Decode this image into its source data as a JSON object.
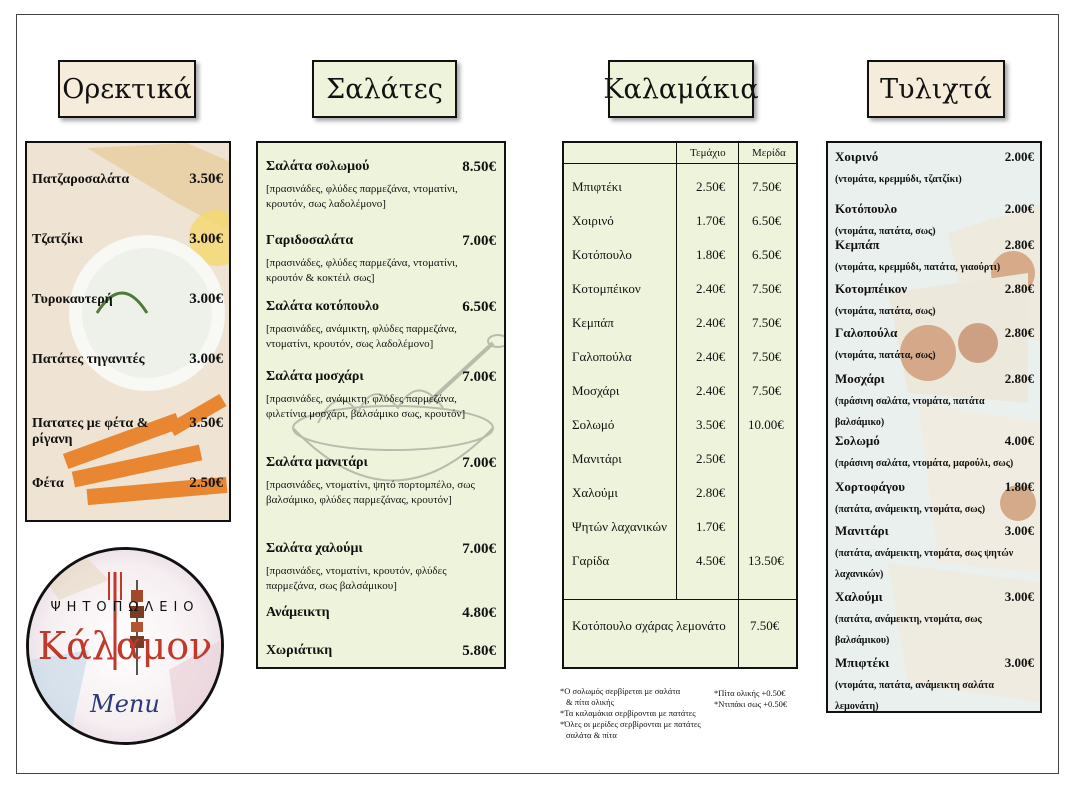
{
  "sections": {
    "appetizers": "Ορεκτικά",
    "salads": "Σαλάτες",
    "skewers": "Καλαμάκια",
    "wraps": "Τυλιχτά"
  },
  "appetizers": [
    {
      "name": "Πατζαροσαλάτα",
      "price": "3.50€"
    },
    {
      "name": "Τζατζίκι",
      "price": "3.00€"
    },
    {
      "name": "Τυροκαυτερή",
      "price": "3.00€"
    },
    {
      "name": "Πατάτες τηγανιτές",
      "price": "3.00€"
    },
    {
      "name": "Πατατες με φέτα & ρίγανη",
      "price": "3.50€"
    },
    {
      "name": "Φέτα",
      "price": "2.50€"
    }
  ],
  "salads": [
    {
      "name": "Σαλάτα σολωμού",
      "price": "8.50€",
      "desc": "[πρασινάδες, φλύδες παρμεζάνα, ντοματίνι, κρουτόν, σως λαδολέμονο]"
    },
    {
      "name": "Γαριδοσαλάτα",
      "price": "7.00€",
      "desc": "[πρασινάδες, φλύδες παρμεζάνα, ντοματίνι, κρουτόν & κοκτέιλ σως]"
    },
    {
      "name": "Σαλάτα κοτόπουλο",
      "price": "6.50€",
      "desc": "[πρασινάδες, ανάμικτη, φλύδες παρμεζάνα, ντοματίνι, κρουτόν, σως λαδολέμονο]"
    },
    {
      "name": "Σαλάτα μοσχάρι",
      "price": "7.00€",
      "desc": "[πρασινάδες, ανάμικτη, φλύδες παρμεζάνα, φιλετίνια μοσχάρι, βαλσάμικο σως, κρουτόν]"
    },
    {
      "name": "Σαλάτα μανιτάρι",
      "price": "7.00€",
      "desc": "[πρασινάδες, ντοματίνι, ψητό πορτομπέλο, σως βαλσάμικο, φλύδες παρμεζάνας, κρουτόν]"
    },
    {
      "name": "Σαλάτα χαλούμι",
      "price": "7.00€",
      "desc": "[πρασινάδες, ντοματίνι, κρουτόν, φλύδες παρμεζάνα, σως βαλσάμικου]"
    },
    {
      "name": "Ανάμεικτη",
      "price": "4.80€",
      "desc": ""
    },
    {
      "name": "Χωριάτικη",
      "price": "5.80€",
      "desc": ""
    }
  ],
  "skewers": {
    "col_piece": "Τεμάχιο",
    "col_portion": "Μερίδα",
    "rows": [
      {
        "name": "Μπιφτέκι",
        "piece": "2.50€",
        "portion": "7.50€"
      },
      {
        "name": "Χοιρινό",
        "piece": "1.70€",
        "portion": "6.50€"
      },
      {
        "name": "Κοτόπουλο",
        "piece": "1.80€",
        "portion": "6.50€"
      },
      {
        "name": "Κοτομπέικον",
        "piece": "2.40€",
        "portion": "7.50€"
      },
      {
        "name": "Κεμπάπ",
        "piece": "2.40€",
        "portion": "7.50€"
      },
      {
        "name": "Γαλοπούλα",
        "piece": "2.40€",
        "portion": "7.50€"
      },
      {
        "name": "Μοσχάρι",
        "piece": "2.40€",
        "portion": "7.50€"
      },
      {
        "name": "Σολωμό",
        "piece": "3.50€",
        "portion": "10.00€"
      },
      {
        "name": "Μανιτάρι",
        "piece": "2.50€",
        "portion": ""
      },
      {
        "name": "Χαλούμι",
        "piece": "2.80€",
        "portion": ""
      },
      {
        "name": "Ψητών λαχανικών",
        "piece": "1.70€",
        "portion": ""
      },
      {
        "name": "Γαρίδα",
        "piece": "4.50€",
        "portion": "13.50€"
      }
    ],
    "footer": {
      "name": "Κοτόπουλο σχάρας λεμονάτο",
      "portion": "7.50€"
    }
  },
  "notes_left": [
    "*Ο σολωμός σερβίρεται με σαλάτα",
    "& πίτα ολικής",
    "*Τα καλαμάκια σερβίρονται με πατάτες",
    "*Όλες οι μερίδες σερβίρονται με πατάτες",
    "σαλάτα & πίτα"
  ],
  "notes_right": [
    "*Πίτα ολικής  +0.50€",
    "*Ντιπάκι σως  +0.50€"
  ],
  "wraps": [
    {
      "name": "Χοιρινό",
      "price": "2.00€",
      "desc": "(ντομάτα, κρεμμύδι, τζατζίκι)"
    },
    {
      "name": "Κοτόπουλο",
      "price": "2.00€",
      "desc": "(ντομάτα, πατάτα, σως)"
    },
    {
      "name": "Κεμπάπ",
      "price": "2.80€",
      "desc": "(ντομάτα, κρεμμύδι, πατάτα, γιαούρτι)"
    },
    {
      "name": "Κοτομπέικον",
      "price": "2.80€",
      "desc": "(ντομάτα, πατάτα, σως)"
    },
    {
      "name": "Γαλοπούλα",
      "price": "2.80€",
      "desc": "(ντομάτα, πατάτα, σως)"
    },
    {
      "name": "Μοσχάρι",
      "price": "2.80€",
      "desc": "(πράσινη σαλάτα, ντομάτα, πατάτα βαλσάμικο)"
    },
    {
      "name": "Σολωμό",
      "price": "4.00€",
      "desc": "(πράσινη σαλάτα, ντομάτα, μαρούλι, σως)"
    },
    {
      "name": "Χορτοφάγου",
      "price": "1.80€",
      "desc": "(πατάτα, ανάμεικτη, ντομάτα, σως)"
    },
    {
      "name": "Μανιτάρι",
      "price": "3.00€",
      "desc": "(πατάτα, ανάμεικτη, ντομάτα, σως ψητών λαχανικών)"
    },
    {
      "name": "Χαλούμι",
      "price": "3.00€",
      "desc": "(πατάτα, ανάμεικτη, ντομάτα, σως βαλσάμικου)"
    },
    {
      "name": "Μπιφτέκι",
      "price": "3.00€",
      "desc": "(ντομάτα, πατάτα, ανάμεικτη σαλάτα λεμονάτη)"
    }
  ],
  "logo": {
    "top_text": "ΨΗΤΟΠΩΛΕΙΟ",
    "name": "Κάλαμον",
    "sub": "Menu"
  },
  "colors": {
    "salad_bg": "#eef4dc",
    "appetizer_tab_bg": "#f6ecdc",
    "logo_red": "#c0392b",
    "logo_navy": "#2b3a78"
  }
}
